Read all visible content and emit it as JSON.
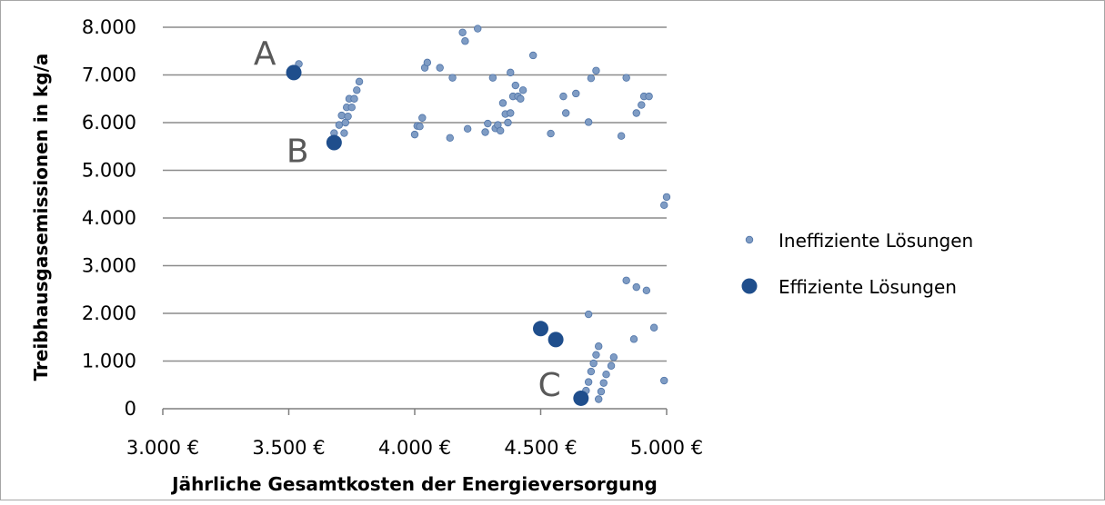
{
  "chart_data": {
    "type": "scatter",
    "xlabel": "Jährliche Gesamtkosten der Energieversorgung",
    "ylabel": "Treibhausgasemissionen in kg/a",
    "xlim": [
      3000,
      5000
    ],
    "ylim": [
      0,
      8000
    ],
    "x_tick_values": [
      3000,
      3500,
      4000,
      4500,
      5000
    ],
    "x_tick_labels": [
      "3.000 €",
      "3.500 €",
      "4.000 €",
      "4.500 €",
      "5.000 €"
    ],
    "y_tick_values": [
      0,
      1000,
      2000,
      3000,
      4000,
      5000,
      6000,
      7000,
      8000
    ],
    "y_tick_labels": [
      "0",
      "1.000",
      "2.000",
      "3.000",
      "4.000",
      "5.000",
      "6.000",
      "7.000",
      "8.000"
    ],
    "grid": "horizontal",
    "legend_position": "right",
    "colors": {
      "ineffizient": "#7f9cc4",
      "ineffizient_edge": "#4f74a8",
      "effizient": "#1f4e8c",
      "gridline": "#8c8c8c",
      "axis": "#7f7f7f",
      "annotation": "#595959"
    },
    "series": [
      {
        "name": "Ineffiziente Lösungen",
        "marker": "small-circle",
        "points": [
          [
            3540,
            7230
          ],
          [
            3680,
            5780
          ],
          [
            3700,
            5950
          ],
          [
            3710,
            6150
          ],
          [
            3720,
            5780
          ],
          [
            3725,
            6000
          ],
          [
            3730,
            6320
          ],
          [
            3735,
            6130
          ],
          [
            3740,
            6500
          ],
          [
            3750,
            6320
          ],
          [
            3760,
            6500
          ],
          [
            3770,
            6680
          ],
          [
            3780,
            6860
          ],
          [
            4000,
            5750
          ],
          [
            4010,
            5930
          ],
          [
            4020,
            5920
          ],
          [
            4030,
            6100
          ],
          [
            4040,
            7150
          ],
          [
            4050,
            7260
          ],
          [
            4100,
            7150
          ],
          [
            4140,
            5680
          ],
          [
            4150,
            6940
          ],
          [
            4190,
            7890
          ],
          [
            4200,
            7710
          ],
          [
            4210,
            5870
          ],
          [
            4250,
            7970
          ],
          [
            4280,
            5800
          ],
          [
            4290,
            5980
          ],
          [
            4310,
            6940
          ],
          [
            4320,
            5880
          ],
          [
            4330,
            5950
          ],
          [
            4340,
            5830
          ],
          [
            4350,
            6410
          ],
          [
            4360,
            6180
          ],
          [
            4370,
            6000
          ],
          [
            4380,
            6200
          ],
          [
            4380,
            7050
          ],
          [
            4390,
            6550
          ],
          [
            4400,
            6780
          ],
          [
            4410,
            6550
          ],
          [
            4420,
            6500
          ],
          [
            4430,
            6680
          ],
          [
            4470,
            7410
          ],
          [
            4540,
            5770
          ],
          [
            4590,
            6550
          ],
          [
            4600,
            6200
          ],
          [
            4640,
            6610
          ],
          [
            4690,
            6010
          ],
          [
            4700,
            6930
          ],
          [
            4720,
            7090
          ],
          [
            4820,
            5720
          ],
          [
            4840,
            6940
          ],
          [
            4880,
            6200
          ],
          [
            4900,
            6370
          ],
          [
            4910,
            6550
          ],
          [
            4930,
            6550
          ],
          [
            4990,
            4270
          ],
          [
            5000,
            4440
          ],
          [
            4840,
            2690
          ],
          [
            4880,
            2550
          ],
          [
            4920,
            2480
          ],
          [
            4950,
            1700
          ],
          [
            4870,
            1460
          ],
          [
            4990,
            590
          ],
          [
            4690,
            1980
          ],
          [
            4660,
            200
          ],
          [
            4680,
            380
          ],
          [
            4690,
            560
          ],
          [
            4700,
            780
          ],
          [
            4710,
            950
          ],
          [
            4720,
            1130
          ],
          [
            4730,
            1310
          ],
          [
            4730,
            200
          ],
          [
            4740,
            360
          ],
          [
            4750,
            540
          ],
          [
            4760,
            720
          ],
          [
            4780,
            900
          ],
          [
            4790,
            1080
          ]
        ]
      },
      {
        "name": "Effiziente Lösungen",
        "marker": "large-circle",
        "points": [
          [
            3520,
            7050
          ],
          [
            3680,
            5580
          ],
          [
            4500,
            1680
          ],
          [
            4560,
            1450
          ],
          [
            4660,
            220
          ]
        ]
      }
    ],
    "annotations": [
      {
        "text": "A",
        "x": 3405,
        "y": 7450
      },
      {
        "text": "B",
        "x": 3535,
        "y": 5400
      },
      {
        "text": "C",
        "x": 4535,
        "y": 500
      }
    ]
  }
}
